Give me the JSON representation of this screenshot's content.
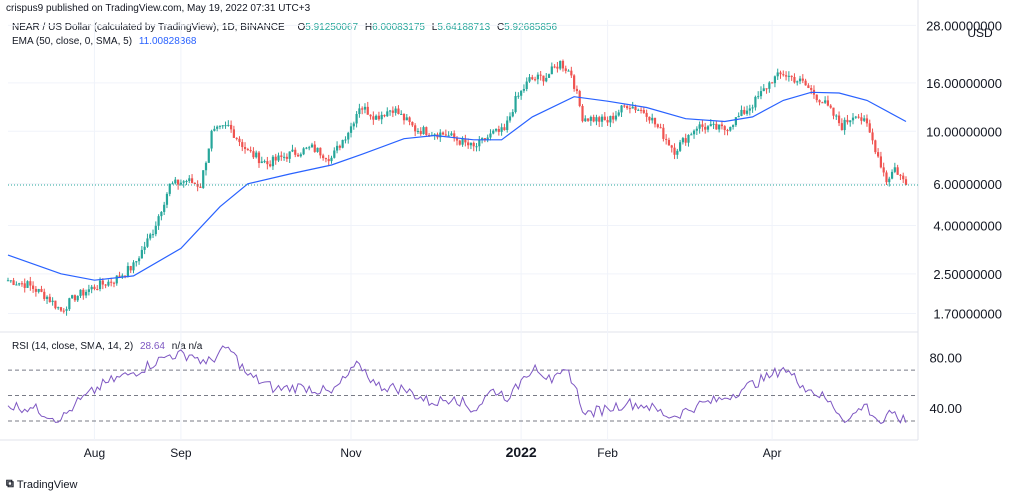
{
  "publisher_line": "crispus9 published on TradingView.com, May 19, 2022 07:31 UTC+3",
  "legend": {
    "symbol": "NEAR / US Dollar (calculated by TradingView), 1D, BINANCE",
    "o_label": "O",
    "o_value": "5.91250067",
    "h_label": "H",
    "h_value": "6.00083175",
    "l_label": "L",
    "l_value": "5.64188713",
    "c_label": "C",
    "c_value": "5.92685856",
    "ema_label": "EMA (50, close, 0, SMA, 5)",
    "ema_value": "11.00828368"
  },
  "rsi_legend": {
    "label": "RSI (14, close, SMA, 14, 2)",
    "value": "28.64",
    "extra": "n/a  n/a"
  },
  "currency": "USD",
  "branding": "TradingView",
  "colors": {
    "up": "#26a69a",
    "down": "#ef5350",
    "ema": "#2962ff",
    "rsi": "#7e57c2",
    "grid": "#f0f3fa",
    "axis_text": "#131722",
    "price_line": "#26a69a",
    "rsi_band": "#787b86"
  },
  "chart_data": [
    {
      "type": "candlestick",
      "title": "NEAR / US Dollar (calculated by TradingView), 1D, BINANCE",
      "y_scale": "log",
      "y_ticks": [
        "28.00000000",
        "16.00000000",
        "10.00000000",
        "6.00000000",
        "4.00000000",
        "2.50000000",
        "1.70000000"
      ],
      "y_tick_values": [
        28,
        16,
        10,
        6,
        4,
        2.5,
        1.7
      ],
      "x_ticks": [
        "Aug",
        "Sep",
        "Nov",
        "2022",
        "Feb",
        "Apr"
      ],
      "x_tick_dates": [
        "2021-08-01",
        "2021-09-01",
        "2021-11-01",
        "2022-01-01",
        "2022-02-01",
        "2022-04-01"
      ],
      "date_range": [
        "2021-07-01",
        "2022-05-19"
      ],
      "last_close": 5.92685856,
      "series": [
        {
          "name": "NEAR / US Dollar",
          "kind": "close_path",
          "points": [
            [
              "2021-07-01",
              2.35
            ],
            [
              "2021-07-08",
              2.25
            ],
            [
              "2021-07-15",
              2.0
            ],
            [
              "2021-07-20",
              1.75
            ],
            [
              "2021-07-25",
              2.0
            ],
            [
              "2021-08-01",
              2.2
            ],
            [
              "2021-08-08",
              2.35
            ],
            [
              "2021-08-15",
              2.7
            ],
            [
              "2021-08-22",
              3.8
            ],
            [
              "2021-08-28",
              5.9
            ],
            [
              "2021-09-03",
              6.2
            ],
            [
              "2021-09-08",
              5.9
            ],
            [
              "2021-09-12",
              9.8
            ],
            [
              "2021-09-18",
              10.5
            ],
            [
              "2021-09-25",
              8.2
            ],
            [
              "2021-10-02",
              7.3
            ],
            [
              "2021-10-10",
              8.0
            ],
            [
              "2021-10-18",
              8.5
            ],
            [
              "2021-10-25",
              7.7
            ],
            [
              "2021-11-01",
              10.5
            ],
            [
              "2021-11-04",
              12.8
            ],
            [
              "2021-11-10",
              11.5
            ],
            [
              "2021-11-16",
              12.5
            ],
            [
              "2021-11-24",
              10.2
            ],
            [
              "2021-12-05",
              9.7
            ],
            [
              "2021-12-15",
              8.5
            ],
            [
              "2021-12-22",
              9.8
            ],
            [
              "2021-12-26",
              10.0
            ],
            [
              "2021-12-30",
              13.5
            ],
            [
              "2022-01-04",
              16.5
            ],
            [
              "2022-01-10",
              17.0
            ],
            [
              "2022-01-15",
              19.5
            ],
            [
              "2022-01-19",
              17.5
            ],
            [
              "2022-01-23",
              11.5
            ],
            [
              "2022-02-01",
              11.0
            ],
            [
              "2022-02-08",
              13.0
            ],
            [
              "2022-02-15",
              12.0
            ],
            [
              "2022-02-25",
              8.3
            ],
            [
              "2022-03-05",
              10.5
            ],
            [
              "2022-03-15",
              10.2
            ],
            [
              "2022-03-25",
              13.0
            ],
            [
              "2022-04-01",
              16.5
            ],
            [
              "2022-04-05",
              17.5
            ],
            [
              "2022-04-12",
              16.0
            ],
            [
              "2022-04-20",
              13.0
            ],
            [
              "2022-04-26",
              10.5
            ],
            [
              "2022-05-01",
              12.0
            ],
            [
              "2022-05-05",
              10.5
            ],
            [
              "2022-05-08",
              8.5
            ],
            [
              "2022-05-12",
              6.2
            ],
            [
              "2022-05-15",
              7.0
            ],
            [
              "2022-05-19",
              5.93
            ]
          ]
        },
        {
          "name": "EMA (50, close, 0, SMA, 5)",
          "kind": "line",
          "points": [
            [
              "2021-07-01",
              3.0
            ],
            [
              "2021-07-20",
              2.5
            ],
            [
              "2021-08-01",
              2.35
            ],
            [
              "2021-08-15",
              2.45
            ],
            [
              "2021-09-01",
              3.2
            ],
            [
              "2021-09-15",
              4.8
            ],
            [
              "2021-09-25",
              6.0
            ],
            [
              "2021-10-10",
              6.6
            ],
            [
              "2021-10-25",
              7.2
            ],
            [
              "2021-11-05",
              8.0
            ],
            [
              "2021-11-20",
              9.3
            ],
            [
              "2021-12-01",
              9.6
            ],
            [
              "2021-12-15",
              9.2
            ],
            [
              "2021-12-25",
              9.2
            ],
            [
              "2022-01-05",
              11.5
            ],
            [
              "2022-01-20",
              14.0
            ],
            [
              "2022-02-01",
              13.4
            ],
            [
              "2022-02-15",
              12.6
            ],
            [
              "2022-03-01",
              11.3
            ],
            [
              "2022-03-15",
              11.0
            ],
            [
              "2022-03-25",
              11.5
            ],
            [
              "2022-04-05",
              13.5
            ],
            [
              "2022-04-15",
              14.6
            ],
            [
              "2022-04-25",
              14.5
            ],
            [
              "2022-05-05",
              13.5
            ],
            [
              "2022-05-19",
              11.0
            ]
          ]
        }
      ]
    },
    {
      "type": "line",
      "title": "RSI (14, close, SMA, 14, 2)",
      "y_ticks": [
        "80.00",
        "40.00"
      ],
      "y_tick_values": [
        80,
        40
      ],
      "bands": [
        70,
        50,
        30
      ],
      "series": [
        {
          "name": "RSI",
          "points": [
            [
              "2021-07-01",
              42
            ],
            [
              "2021-07-10",
              40
            ],
            [
              "2021-07-20",
              31
            ],
            [
              "2021-07-25",
              43
            ],
            [
              "2021-08-05",
              60
            ],
            [
              "2021-08-15",
              68
            ],
            [
              "2021-08-28",
              82
            ],
            [
              "2021-09-05",
              82
            ],
            [
              "2021-09-10",
              75
            ],
            [
              "2021-09-18",
              88
            ],
            [
              "2021-09-25",
              66
            ],
            [
              "2021-10-05",
              55
            ],
            [
              "2021-10-15",
              57
            ],
            [
              "2021-10-25",
              52
            ],
            [
              "2021-11-04",
              75
            ],
            [
              "2021-11-10",
              58
            ],
            [
              "2021-11-20",
              55
            ],
            [
              "2021-11-30",
              44
            ],
            [
              "2021-12-08",
              49
            ],
            [
              "2021-12-15",
              38
            ],
            [
              "2021-12-22",
              55
            ],
            [
              "2021-12-28",
              48
            ],
            [
              "2022-01-02",
              65
            ],
            [
              "2022-01-06",
              74
            ],
            [
              "2022-01-12",
              60
            ],
            [
              "2022-01-18",
              70
            ],
            [
              "2022-01-24",
              35
            ],
            [
              "2022-02-01",
              40
            ],
            [
              "2022-02-08",
              44
            ],
            [
              "2022-02-15",
              42
            ],
            [
              "2022-02-24",
              33
            ],
            [
              "2022-03-05",
              42
            ],
            [
              "2022-03-15",
              48
            ],
            [
              "2022-03-22",
              56
            ],
            [
              "2022-04-01",
              66
            ],
            [
              "2022-04-05",
              72
            ],
            [
              "2022-04-12",
              58
            ],
            [
              "2022-04-20",
              48
            ],
            [
              "2022-04-28",
              30
            ],
            [
              "2022-05-04",
              43
            ],
            [
              "2022-05-10",
              28
            ],
            [
              "2022-05-14",
              36
            ],
            [
              "2022-05-19",
              28.64
            ]
          ]
        }
      ]
    }
  ]
}
